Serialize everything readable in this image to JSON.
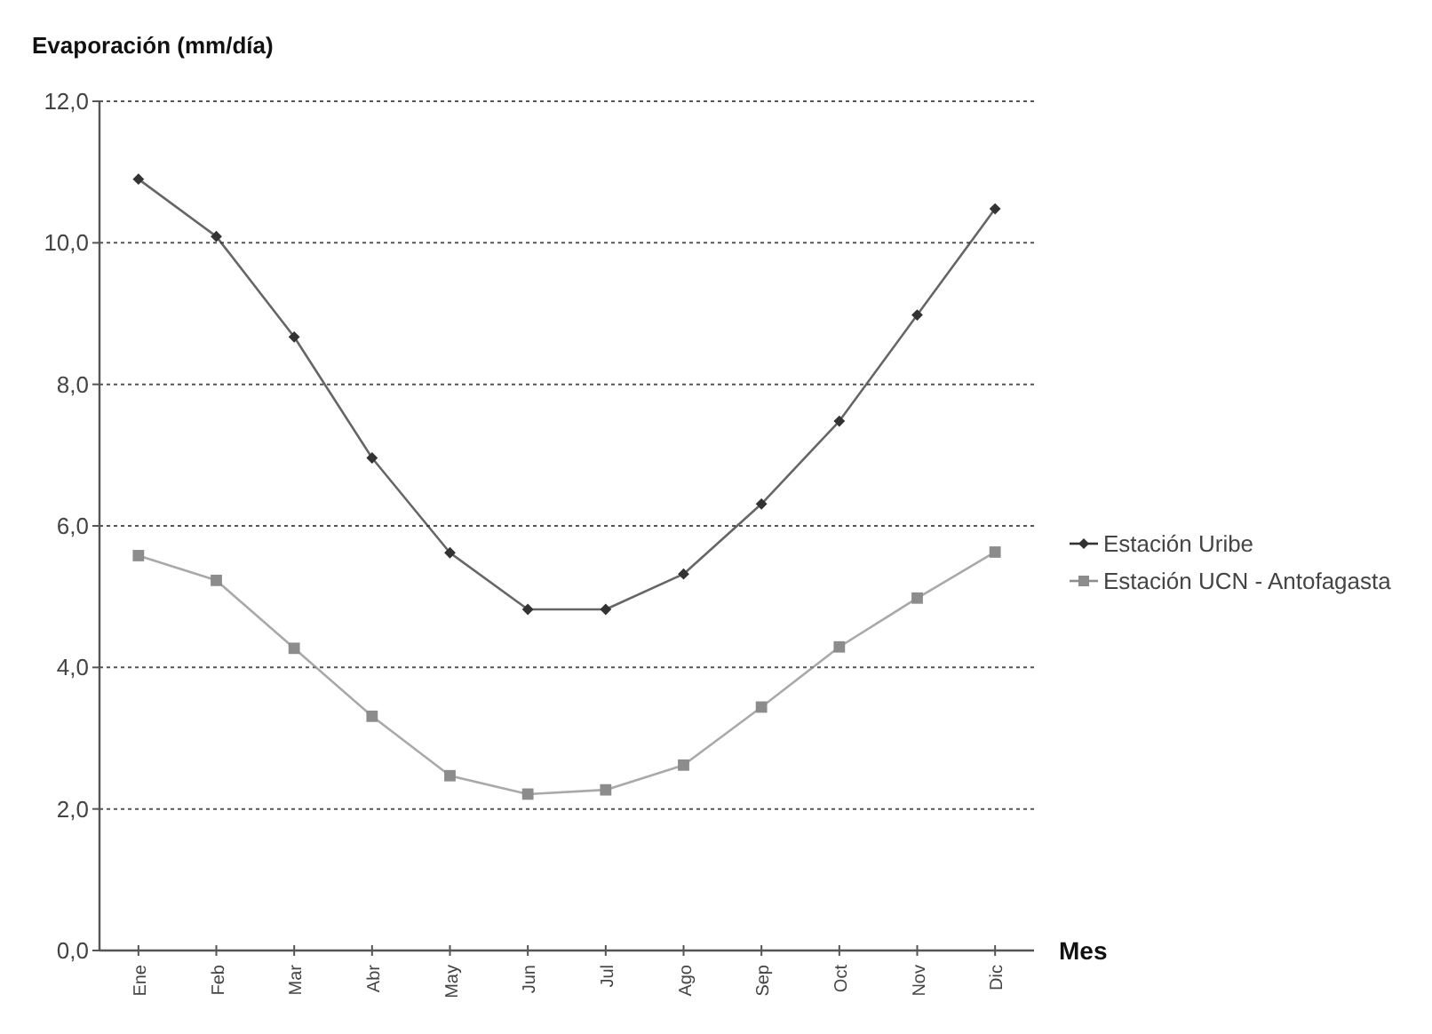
{
  "chart_data": {
    "type": "line",
    "ylabel": "Evaporación (mm/día)",
    "xlabel": "Mes",
    "categories": [
      "Ene",
      "Feb",
      "Mar",
      "Abr",
      "May",
      "Jun",
      "Jul",
      "Ago",
      "Sep",
      "Oct",
      "Nov",
      "Dic"
    ],
    "series": [
      {
        "name": "Estación Uribe",
        "color": "#333333",
        "marker": "diamond",
        "values": [
          10.9,
          10.09,
          8.67,
          6.96,
          5.62,
          4.82,
          4.82,
          5.32,
          6.31,
          7.48,
          8.98,
          10.48
        ]
      },
      {
        "name": "Estación UCN - Antofagasta",
        "color": "#8c8c8c",
        "marker": "square",
        "values": [
          5.58,
          5.23,
          4.27,
          3.31,
          2.47,
          2.21,
          2.27,
          2.62,
          3.44,
          4.29,
          4.98,
          5.63
        ]
      }
    ],
    "ylim": [
      0,
      12
    ],
    "yticks": [
      {
        "value": 0,
        "label": "0,0"
      },
      {
        "value": 2,
        "label": "2,0"
      },
      {
        "value": 4,
        "label": "4,0"
      },
      {
        "value": 6,
        "label": "6,0"
      },
      {
        "value": 8,
        "label": "8,0"
      },
      {
        "value": 10,
        "label": "10,0"
      },
      {
        "value": 12,
        "label": "12,0"
      }
    ],
    "grid": "y",
    "legend": "right",
    "line_style": "solid"
  }
}
